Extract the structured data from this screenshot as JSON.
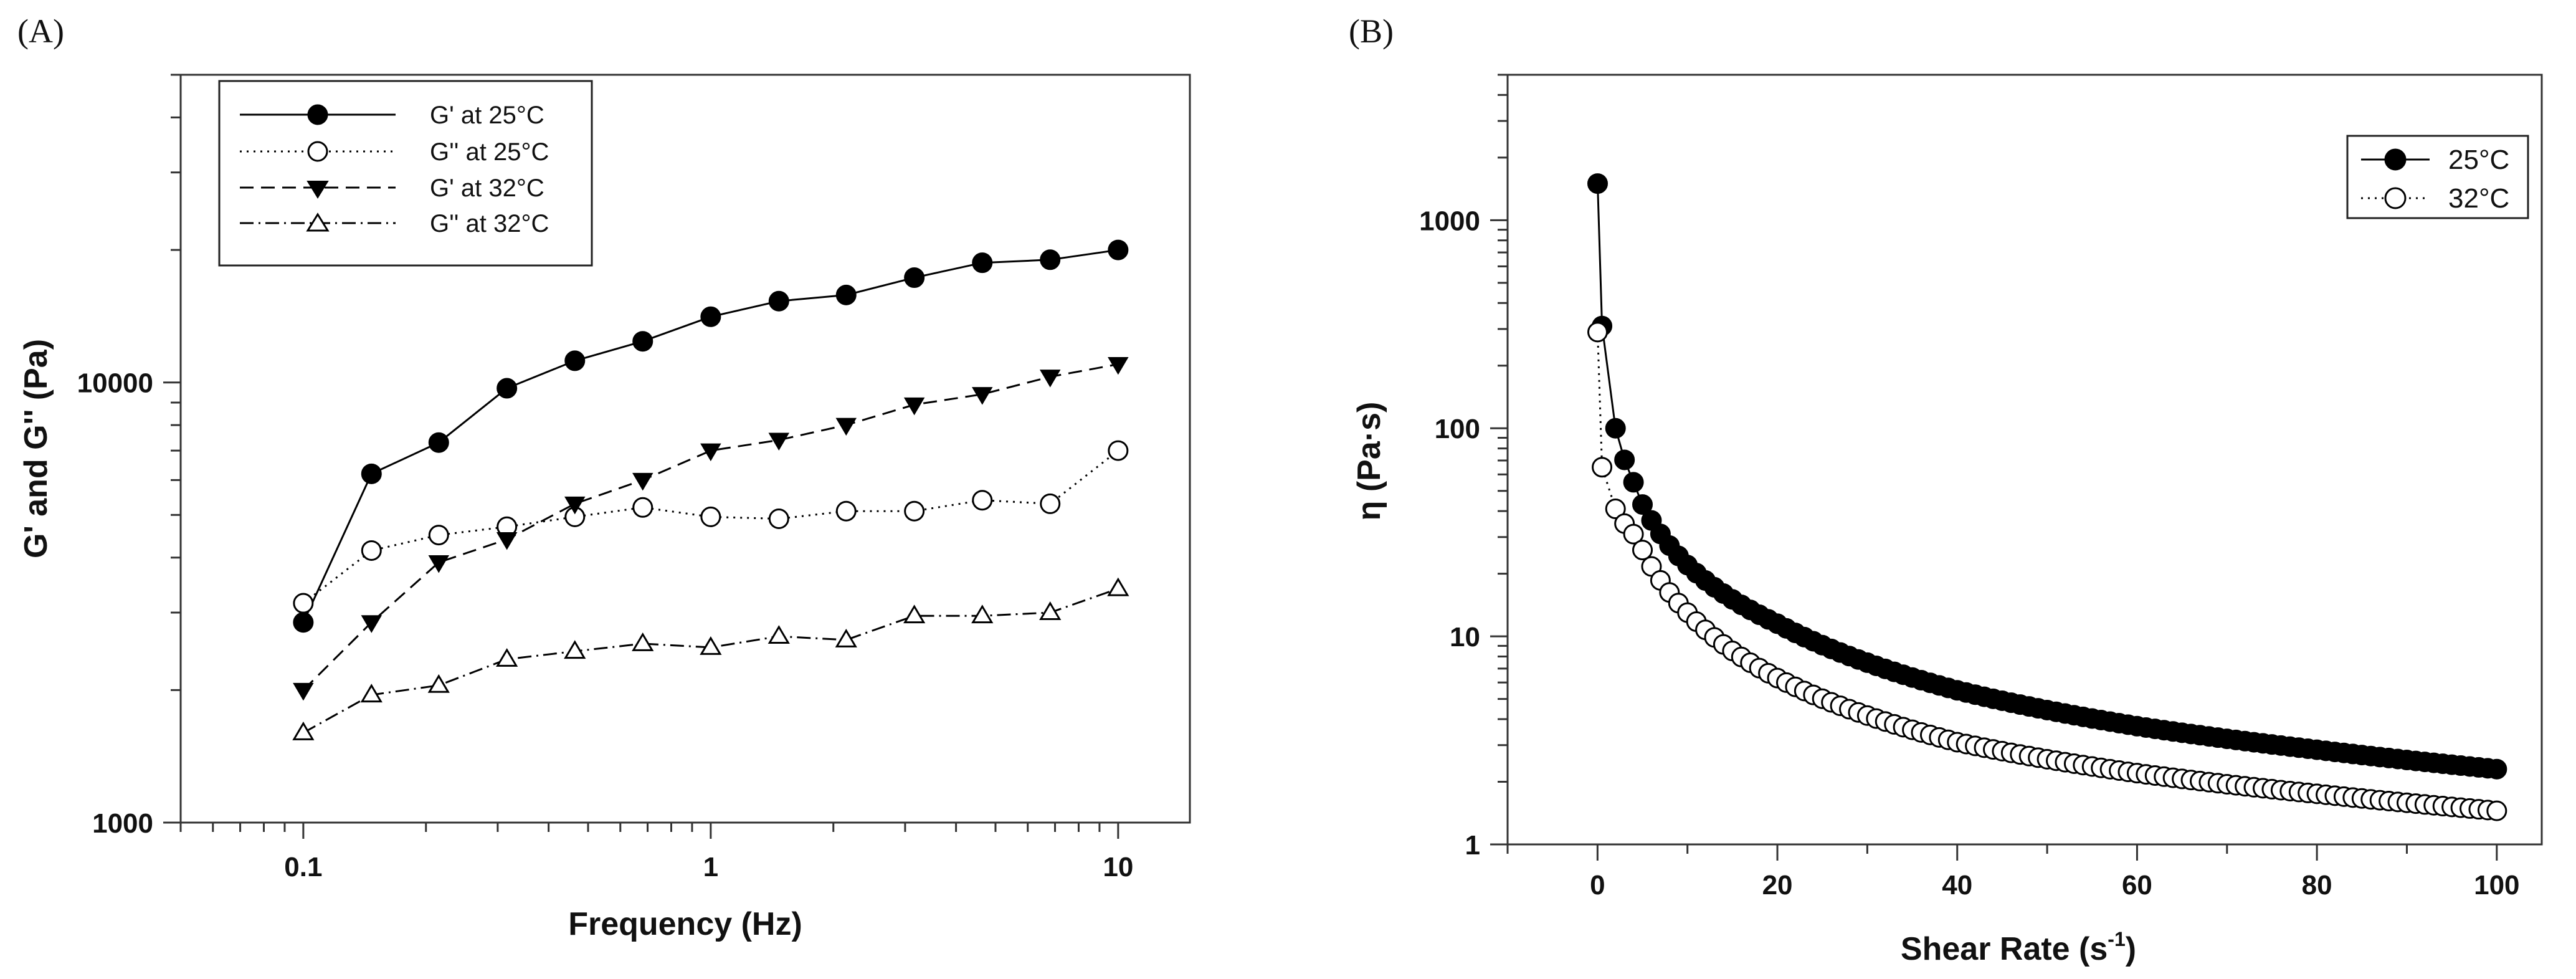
{
  "chart_data": [
    {
      "panel": "(A)",
      "type": "line",
      "xscale": "log",
      "yscale": "log",
      "xlabel": "Frequency (Hz)",
      "ylabel": "G' and G'' (Pa)",
      "xlim": [
        0.05,
        15
      ],
      "ylim": [
        1000,
        50000
      ],
      "x_ticks": [
        {
          "v": 0.1,
          "label": "0.1"
        },
        {
          "v": 1,
          "label": "1"
        },
        {
          "v": 10,
          "label": "10"
        }
      ],
      "y_ticks": [
        {
          "v": 1000,
          "label": "1000"
        },
        {
          "v": 10000,
          "label": "10000"
        }
      ],
      "legend_position": "top-left",
      "x": [
        0.1,
        0.147,
        0.215,
        0.316,
        0.464,
        0.681,
        1.0,
        1.47,
        2.15,
        3.16,
        4.64,
        6.81,
        10.0
      ],
      "series": [
        {
          "name": "G' at 25°C",
          "line": "solid",
          "marker": "circle-filled",
          "values": [
            2850,
            6200,
            7300,
            9700,
            11200,
            12400,
            14100,
            15300,
            15800,
            17300,
            18700,
            19000,
            20000
          ]
        },
        {
          "name": "G'' at 25°C",
          "line": "dotted",
          "marker": "circle-open",
          "values": [
            3150,
            4150,
            4500,
            4700,
            4950,
            5200,
            4950,
            4900,
            5100,
            5100,
            5400,
            5300,
            7000
          ]
        },
        {
          "name": "G' at 32°C",
          "line": "dashed",
          "marker": "triangle-down-filled",
          "values": [
            2000,
            2850,
            3900,
            4400,
            5300,
            6000,
            7000,
            7400,
            8000,
            8900,
            9400,
            10300,
            11000
          ]
        },
        {
          "name": "G'' at 32°C",
          "line": "dashdot",
          "marker": "triangle-up-open",
          "values": [
            1600,
            1950,
            2050,
            2350,
            2450,
            2550,
            2500,
            2650,
            2600,
            2950,
            2950,
            3000,
            3400
          ]
        }
      ]
    },
    {
      "panel": "(B)",
      "type": "line",
      "xscale": "linear",
      "yscale": "log",
      "xlabel": "Shear Rate (s",
      "xlabel_sup": "-1",
      "xlabel_close": ")",
      "ylabel": "η (Pa·s)",
      "xlim": [
        -10,
        105
      ],
      "ylim": [
        1,
        5000
      ],
      "x_ticks": [
        {
          "v": 0,
          "label": "0"
        },
        {
          "v": 20,
          "label": "20"
        },
        {
          "v": 40,
          "label": "40"
        },
        {
          "v": 60,
          "label": "60"
        },
        {
          "v": 80,
          "label": "80"
        },
        {
          "v": 100,
          "label": "100"
        }
      ],
      "y_ticks": [
        {
          "v": 1,
          "label": "1"
        },
        {
          "v": 10,
          "label": "10"
        },
        {
          "v": 100,
          "label": "100"
        },
        {
          "v": 1000,
          "label": "1000"
        }
      ],
      "legend_position": "top-right",
      "series": [
        {
          "name": "25°C",
          "line": "solid",
          "marker": "circle-filled",
          "model": {
            "x": [
              0.01,
              0.5,
              2,
              4,
              5,
              10,
              20,
              40,
              60,
              80,
              100
            ],
            "y": [
              1500,
              310,
              100,
              55,
              43,
              22,
              11.5,
              5.5,
              3.7,
              2.85,
              2.3
            ]
          }
        },
        {
          "name": "32°C",
          "line": "dotted",
          "marker": "circle-open",
          "model": {
            "x": [
              0.01,
              0.5,
              2,
              4,
              5,
              10,
              20,
              40,
              60,
              80,
              100
            ],
            "y": [
              290,
              65,
              41,
              31,
              26,
              13,
              6.3,
              3.1,
              2.2,
              1.75,
              1.45
            ]
          }
        }
      ]
    }
  ]
}
